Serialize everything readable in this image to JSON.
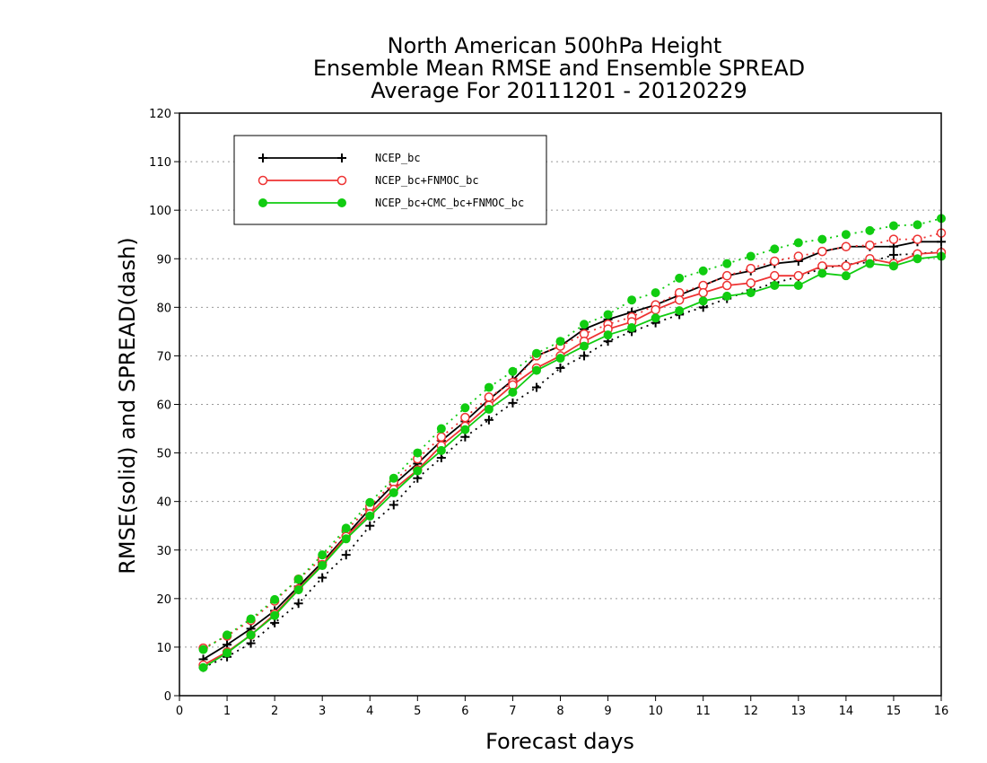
{
  "chart_data": {
    "type": "line",
    "title": [
      "North American 500hPa Height",
      "Ensemble Mean RMSE and Ensemble SPREAD",
      "Average For 20111201 - 20120229"
    ],
    "xlabel": "Forecast days",
    "ylabel": "RMSE(solid) and SPREAD(dash)",
    "xlim": [
      0,
      16
    ],
    "ylim": [
      0,
      120
    ],
    "xticks": [
      0,
      1,
      2,
      3,
      4,
      5,
      6,
      7,
      8,
      9,
      10,
      11,
      12,
      13,
      14,
      15,
      16
    ],
    "yticks": [
      0,
      10,
      20,
      30,
      40,
      50,
      60,
      70,
      80,
      90,
      100,
      110,
      120
    ],
    "grid": "horizontal dotted",
    "legend_position": "top-left",
    "x": [
      0.5,
      1,
      1.5,
      2,
      2.5,
      3,
      3.5,
      4,
      4.5,
      5,
      5.5,
      6,
      6.5,
      7,
      7.5,
      8,
      8.5,
      9,
      9.5,
      10,
      10.5,
      11,
      11.5,
      12,
      12.5,
      13,
      13.5,
      14,
      14.5,
      15,
      15.5,
      16
    ],
    "series": [
      {
        "name": "NCEP_bc",
        "color": "#000000",
        "marker": "plus",
        "rmse": [
          7.5,
          10.5,
          13.8,
          17.5,
          22.5,
          27.5,
          33.0,
          38.5,
          43.5,
          47.8,
          52.5,
          56.5,
          61.0,
          65.0,
          70.0,
          72.0,
          75.5,
          77.5,
          79.0,
          80.5,
          82.5,
          84.5,
          86.5,
          87.5,
          89.0,
          89.5,
          91.5,
          92.5,
          92.5,
          92.5,
          93.5,
          93.5
        ],
        "spread": [
          5.8,
          8.0,
          10.8,
          15.0,
          19.0,
          24.3,
          29.0,
          35.0,
          39.3,
          44.8,
          49.0,
          53.3,
          56.8,
          60.3,
          63.5,
          67.5,
          70.0,
          73.0,
          75.0,
          76.8,
          78.5,
          80.0,
          81.8,
          83.5,
          85.0,
          86.3,
          88.0,
          88.8,
          89.3,
          90.8,
          91.0,
          91.5
        ]
      },
      {
        "name": "NCEP_bc+FNMOC_bc",
        "color": "#ee3333",
        "marker": "open-circle",
        "rmse": [
          6.3,
          9.0,
          12.5,
          16.8,
          22.0,
          27.0,
          32.8,
          37.5,
          42.5,
          46.5,
          51.5,
          55.5,
          59.8,
          64.0,
          67.5,
          70.0,
          73.0,
          75.5,
          77.0,
          79.5,
          81.5,
          83.0,
          84.5,
          85.0,
          86.5,
          86.5,
          88.5,
          88.5,
          90.0,
          89.0,
          91.0,
          91.3
        ],
        "spread": [
          9.8,
          12.3,
          15.5,
          19.5,
          24.0,
          28.3,
          34.0,
          39.0,
          44.0,
          48.8,
          53.3,
          57.3,
          61.5,
          64.5,
          70.0,
          72.0,
          74.5,
          76.5,
          78.0,
          80.5,
          83.0,
          84.5,
          86.5,
          88.0,
          89.5,
          90.5,
          91.5,
          92.5,
          92.8,
          94.0,
          94.0,
          95.3
        ]
      },
      {
        "name": "NCEP_bc+CMC_bc+FNMOC_bc",
        "color": "#11cc11",
        "marker": "filled-circle",
        "rmse": [
          5.8,
          8.8,
          12.5,
          16.5,
          21.8,
          26.8,
          32.3,
          37.0,
          41.8,
          46.3,
          50.5,
          54.8,
          59.0,
          62.5,
          67.0,
          69.5,
          72.0,
          74.3,
          75.8,
          77.8,
          79.3,
          81.3,
          82.3,
          83.0,
          84.5,
          84.5,
          87.0,
          86.5,
          89.0,
          88.5,
          90.0,
          90.5
        ],
        "spread": [
          9.5,
          12.5,
          15.8,
          19.8,
          24.0,
          29.0,
          34.5,
          39.8,
          44.8,
          50.0,
          55.0,
          59.3,
          63.5,
          66.8,
          70.5,
          73.0,
          76.5,
          78.5,
          81.5,
          83.0,
          86.0,
          87.5,
          89.0,
          90.5,
          92.0,
          93.3,
          94.0,
          95.0,
          95.8,
          96.8,
          97.0,
          98.3
        ]
      }
    ]
  }
}
